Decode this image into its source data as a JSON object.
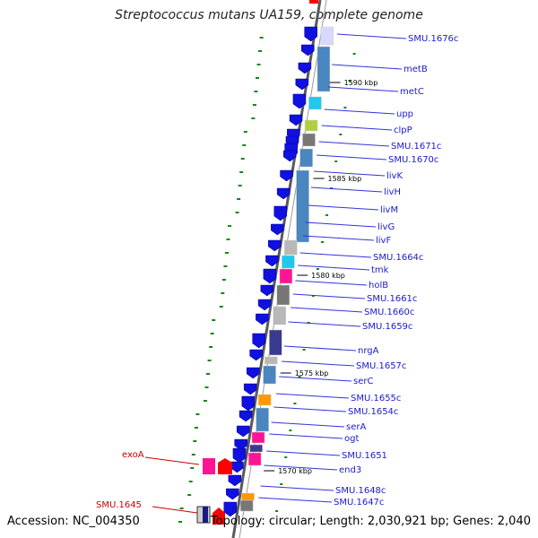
{
  "title": "Streptococcus mutans UA159, complete genome",
  "footer": {
    "accession": "Accession: NC_004350",
    "summary": "Topology: circular; Length: 2,030,921 bp; Genes: 2,040"
  },
  "colors": {
    "backbone": "#808080",
    "forward_arrow": "#1010e0",
    "gene_blue": "#4a86c0",
    "gene_grey": "#b8b8b8",
    "gene_darkgrey": "#777777",
    "gene_cyan": "#20c8ee",
    "gene_lime": "#b0d040",
    "gene_magenta": "#ff1493",
    "gene_navy": "#3a3a90",
    "gene_orange": "#ff9900",
    "gene_lavender": "#d8d8ff",
    "label_blue": "#1a1acc",
    "label_red": "#cc0000",
    "tick_green": "#118811"
  },
  "kbp_markers": [
    "1590 kbp",
    "1585 kbp",
    "1580 kbp",
    "1575 kbp",
    "1570 kbp"
  ],
  "gene_labels": [
    "SMU.1676c",
    "metB",
    "metC",
    "upp",
    "clpP",
    "SMU.1671c",
    "SMU.1670c",
    "livK",
    "livH",
    "livM",
    "livG",
    "livF",
    "SMU.1664c",
    "tmk",
    "holB",
    "SMU.1661c",
    "SMU.1660c",
    "SMU.1659c",
    "nrgA",
    "SMU.1657c",
    "serC",
    "SMU.1655c",
    "SMU.1654c",
    "serA",
    "ogt",
    "SMU.1651",
    "end3",
    "SMU.1648c",
    "SMU.1647c"
  ],
  "outer_labels": [
    "exoA",
    "SMU.1645"
  ]
}
